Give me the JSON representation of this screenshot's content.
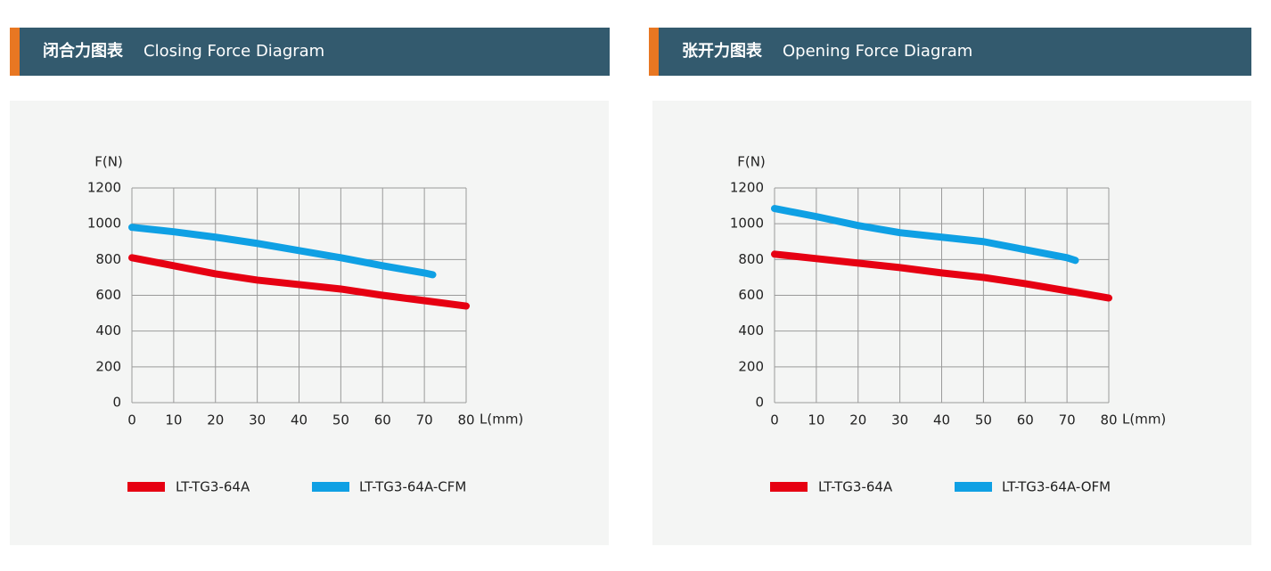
{
  "chart_data": [
    {
      "type": "line",
      "title_cn": "闭合力图表",
      "title": "Closing Force Diagram",
      "y_label": "F(N)",
      "x_label": "L(mm)",
      "xlim": [
        0,
        80
      ],
      "xticks": [
        0,
        10,
        20,
        30,
        40,
        50,
        60,
        70,
        80
      ],
      "ylim": [
        0,
        1200
      ],
      "yticks": [
        0,
        200,
        400,
        600,
        800,
        1000,
        1200
      ],
      "grid": true,
      "series": [
        {
          "name": "LT-TG3-64A",
          "color": "#e60012",
          "x": [
            0,
            10,
            20,
            30,
            40,
            50,
            60,
            70,
            80
          ],
          "values": [
            810,
            765,
            720,
            685,
            660,
            635,
            600,
            570,
            540
          ]
        },
        {
          "name": "LT-TG3-64A-CFM",
          "color": "#0fa0e4",
          "x": [
            0,
            10,
            20,
            30,
            40,
            50,
            60,
            70,
            72
          ],
          "values": [
            980,
            955,
            925,
            890,
            850,
            810,
            765,
            725,
            715
          ]
        }
      ]
    },
    {
      "type": "line",
      "title_cn": "张开力图表",
      "title": "Opening Force Diagram",
      "y_label": "F(N)",
      "x_label": "L(mm)",
      "xlim": [
        0,
        80
      ],
      "xticks": [
        0,
        10,
        20,
        30,
        40,
        50,
        60,
        70,
        80
      ],
      "ylim": [
        0,
        1200
      ],
      "yticks": [
        0,
        200,
        400,
        600,
        800,
        1000,
        1200
      ],
      "grid": true,
      "series": [
        {
          "name": "LT-TG3-64A",
          "color": "#e60012",
          "x": [
            0,
            10,
            20,
            30,
            40,
            50,
            60,
            70,
            80
          ],
          "values": [
            830,
            805,
            780,
            755,
            725,
            700,
            665,
            625,
            585
          ]
        },
        {
          "name": "LT-TG3-64A-OFM",
          "color": "#0fa0e4",
          "x": [
            0,
            10,
            20,
            30,
            40,
            50,
            60,
            70,
            72
          ],
          "values": [
            1085,
            1040,
            990,
            950,
            925,
            900,
            855,
            810,
            795
          ]
        }
      ]
    }
  ]
}
